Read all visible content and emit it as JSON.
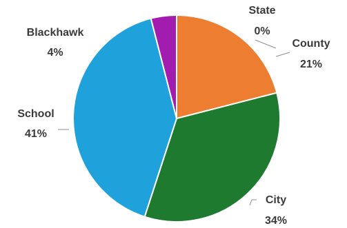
{
  "chart_data": {
    "type": "pie",
    "start_angle_deg": 0,
    "direction": "clockwise",
    "slices": [
      {
        "label": "State",
        "value": 0,
        "value_label": "0%",
        "color": "#7f3f98"
      },
      {
        "label": "County",
        "value": 21,
        "value_label": "21%",
        "color": "#ed7d31"
      },
      {
        "label": "City",
        "value": 34,
        "value_label": "34%",
        "color": "#1e7a2e"
      },
      {
        "label": "School",
        "value": 41,
        "value_label": "41%",
        "color": "#1fa2db"
      },
      {
        "label": "Blackhawk",
        "value": 4,
        "value_label": "4%",
        "color": "#a21caf"
      }
    ]
  }
}
